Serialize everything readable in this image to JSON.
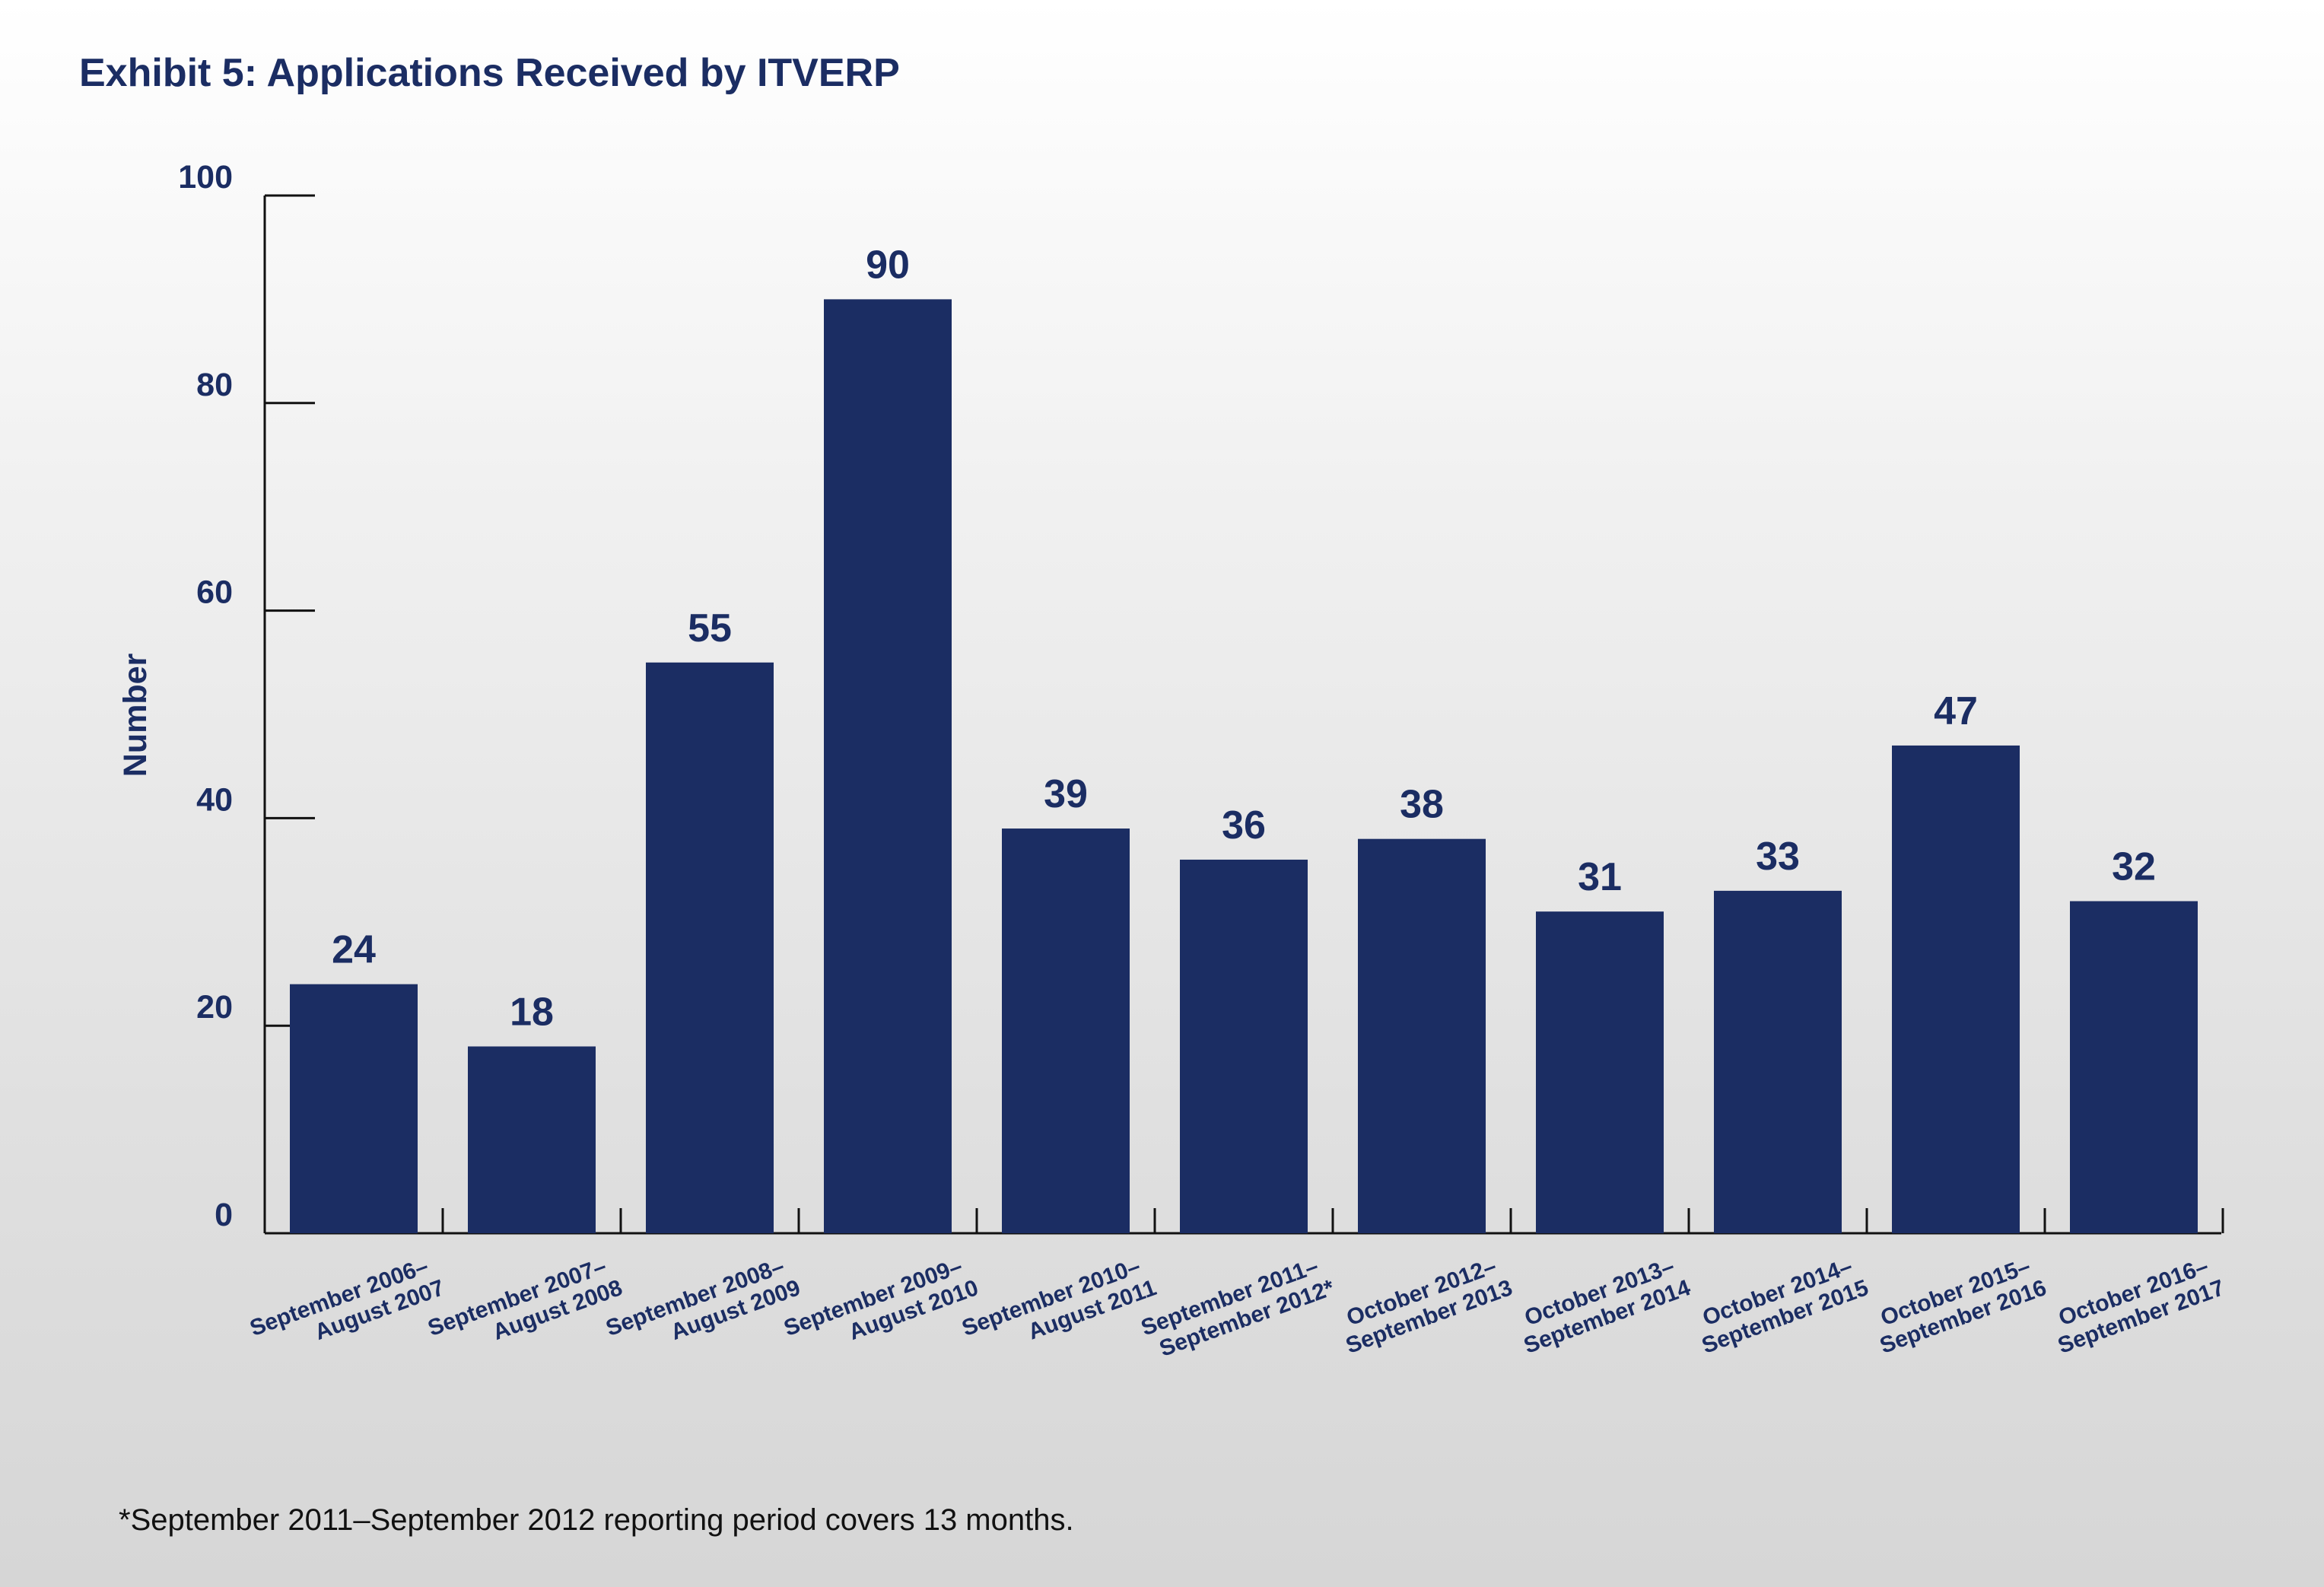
{
  "chart_data": {
    "type": "bar",
    "title": "Exhibit 5: Applications Received by ITVERP",
    "xlabel": "",
    "ylabel": "Number",
    "ylim": [
      0,
      100
    ],
    "yticks": [
      "0",
      "20",
      "40",
      "60",
      "80",
      "100"
    ],
    "categories": [
      [
        "September 2006–",
        "August 2007"
      ],
      [
        "September 2007–",
        "August 2008"
      ],
      [
        "September 2008–",
        "August 2009"
      ],
      [
        "September 2009–",
        "August 2010"
      ],
      [
        "September 2010–",
        "August 2011"
      ],
      [
        "September 2011–",
        "September 2012*"
      ],
      [
        "October 2012–",
        "September 2013"
      ],
      [
        "October 2013–",
        "September 2014"
      ],
      [
        "October 2014–",
        "September 2015"
      ],
      [
        "October 2015–",
        "September 2016"
      ],
      [
        "October 2016–",
        "September 2017"
      ]
    ],
    "values": [
      24,
      18,
      55,
      90,
      39,
      36,
      38,
      31,
      33,
      47,
      32
    ],
    "data_labels": [
      "24",
      "18",
      "55",
      "90",
      "39",
      "36",
      "38",
      "31",
      "33",
      "47",
      "32"
    ],
    "bar_color": "#1b2d63",
    "grid": false,
    "legend": "none"
  },
  "footnote": "*September 2011–September 2012 reporting period covers 13 months."
}
